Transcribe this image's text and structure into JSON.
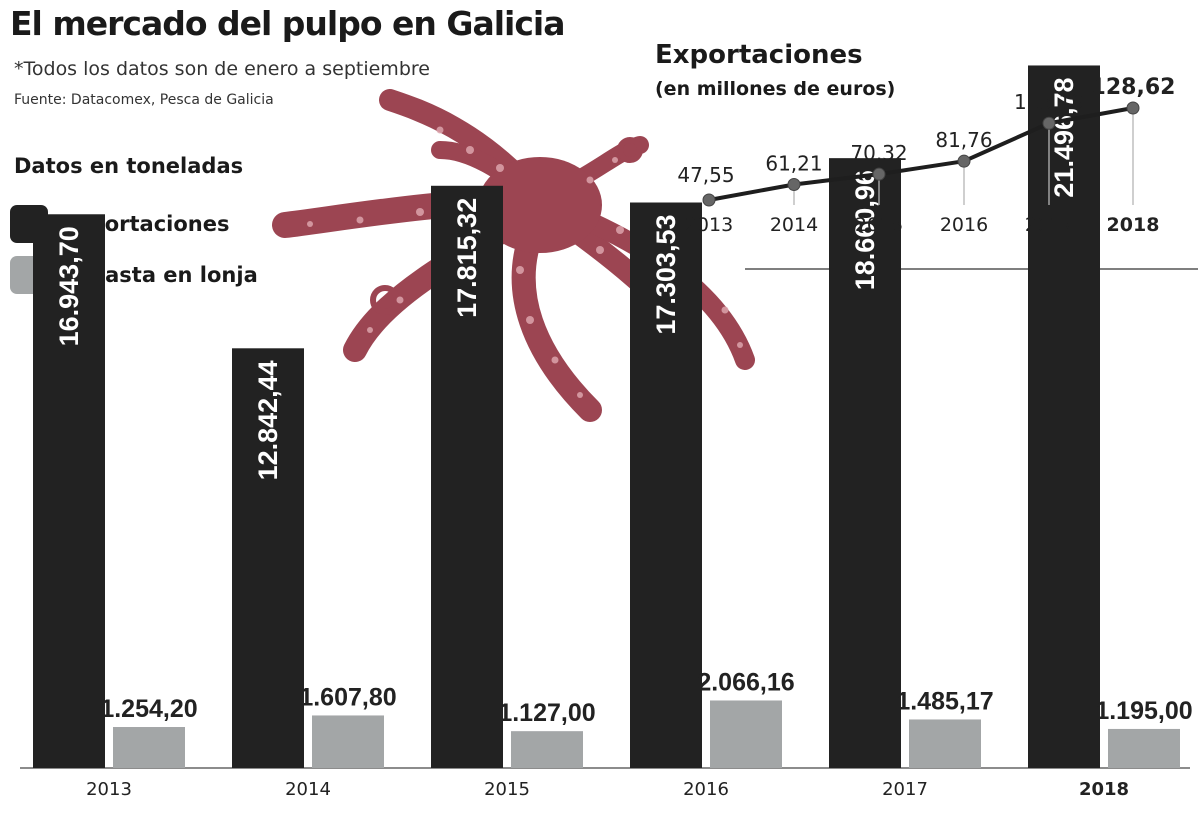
{
  "header": {
    "title": "El mercado del pulpo en Galicia",
    "subtitle": "*Todos los datos son de enero a septiembre",
    "source": "Fuente: Datacomex, Pesca de Galicia",
    "units": "Datos en toneladas"
  },
  "colors": {
    "imports": "#222222",
    "auction": "#a3a6a7",
    "line": "#1e1e1e",
    "octopus": "#9c4552"
  },
  "illustration": {
    "icon": "octopus-photo"
  },
  "chart_data": [
    {
      "type": "bar",
      "categories": [
        "2013",
        "2014",
        "2015",
        "2016",
        "2017",
        "2018"
      ],
      "highlight_category": "2018",
      "series": [
        {
          "name": "Importaciones",
          "values": [
            16943.7,
            12842.44,
            17815.32,
            17303.53,
            18660.96,
            21496.78
          ],
          "labels": [
            "16.943,70",
            "12.842,44",
            "17.815,32",
            "17.303,53",
            "18.660,96",
            "21.496,78"
          ]
        },
        {
          "name": "Subasta en lonja",
          "values": [
            1254.2,
            1607.8,
            1127.0,
            2066.16,
            1485.17,
            1195.0
          ],
          "labels": [
            "1.254,20",
            "1.607,80",
            "1.127,00",
            "2.066,16",
            "1.485,17",
            "1.195,00"
          ]
        }
      ],
      "ylim": [
        0,
        23500
      ],
      "grid": false,
      "legend": "top-left"
    },
    {
      "type": "line",
      "title": "Exportaciones",
      "subtitle": "(en millones de euros)",
      "x": [
        "2013",
        "2014",
        "2015",
        "2016",
        "2017",
        "2018"
      ],
      "highlight_category": "2018",
      "values": [
        47.55,
        61.21,
        70.32,
        81.76,
        115.19,
        128.62
      ],
      "labels": [
        "47,55",
        "61,21",
        "70,32",
        "81,76",
        "115,19",
        "128,62"
      ],
      "ylim": [
        0,
        130
      ],
      "grid": false
    }
  ]
}
